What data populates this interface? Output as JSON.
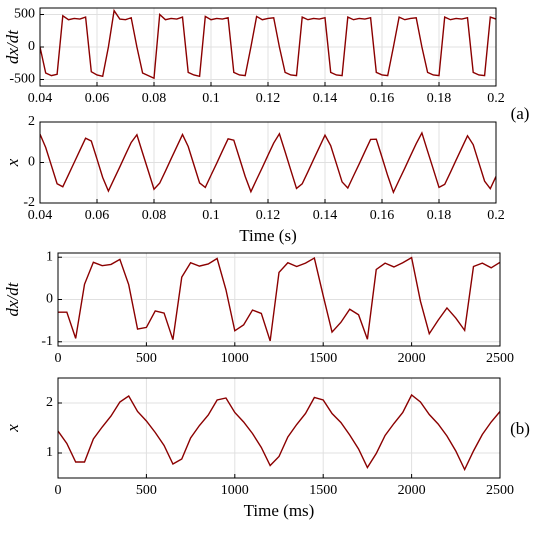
{
  "chart_data": [
    {
      "type": "line",
      "y_label": "dx/dt",
      "color": "#8b0000",
      "grid": true,
      "xlim": [
        0.04,
        0.2
      ],
      "xticks": [
        0.04,
        0.06,
        0.08,
        0.1,
        0.12,
        0.14,
        0.16,
        0.18,
        0.2
      ],
      "ylim": [
        -600,
        600
      ],
      "yticks": [
        -500,
        0,
        500
      ],
      "x": [
        0.04,
        0.042,
        0.044,
        0.046,
        0.048,
        0.05,
        0.052,
        0.054,
        0.056,
        0.058,
        0.06,
        0.062,
        0.064,
        0.066,
        0.068,
        0.07,
        0.072,
        0.074,
        0.076,
        0.078,
        0.08,
        0.082,
        0.084,
        0.086,
        0.088,
        0.09,
        0.092,
        0.094,
        0.096,
        0.098,
        0.1,
        0.102,
        0.104,
        0.106,
        0.108,
        0.11,
        0.112,
        0.114,
        0.116,
        0.118,
        0.12,
        0.122,
        0.124,
        0.126,
        0.128,
        0.13,
        0.132,
        0.134,
        0.136,
        0.138,
        0.14,
        0.142,
        0.144,
        0.146,
        0.148,
        0.15,
        0.152,
        0.154,
        0.156,
        0.158,
        0.16,
        0.162,
        0.164,
        0.166,
        0.168,
        0.17,
        0.172,
        0.174,
        0.176,
        0.178,
        0.18,
        0.182,
        0.184,
        0.186,
        0.188,
        0.19,
        0.192,
        0.194,
        0.196,
        0.198,
        0.2
      ],
      "values": [
        0,
        -400,
        -440,
        -420,
        480,
        420,
        440,
        430,
        460,
        -380,
        -430,
        -450,
        0,
        560,
        430,
        420,
        450,
        0,
        -400,
        -440,
        -480,
        500,
        420,
        440,
        430,
        460,
        -390,
        -430,
        -450,
        470,
        420,
        440,
        430,
        450,
        -390,
        -430,
        -440,
        0,
        470,
        420,
        440,
        450,
        0,
        -390,
        -430,
        -440,
        460,
        420,
        440,
        430,
        450,
        -390,
        -430,
        -440,
        460,
        420,
        440,
        430,
        450,
        -390,
        -430,
        -440,
        0,
        460,
        420,
        440,
        450,
        0,
        -390,
        -430,
        -440,
        460,
        420,
        440,
        430,
        450,
        -390,
        -430,
        -440,
        460,
        430
      ]
    },
    {
      "type": "line",
      "y_label": "x",
      "x_label": "Time (s)",
      "color": "#8b0000",
      "grid": true,
      "annotation": "(a)",
      "xlim": [
        0.04,
        0.2
      ],
      "xticks": [
        0.04,
        0.06,
        0.08,
        0.1,
        0.12,
        0.14,
        0.16,
        0.18,
        0.2
      ],
      "ylim": [
        -2,
        2
      ],
      "yticks": [
        -2,
        0,
        2
      ],
      "x": [
        0.04,
        0.042,
        0.044,
        0.046,
        0.048,
        0.05,
        0.052,
        0.054,
        0.056,
        0.058,
        0.06,
        0.062,
        0.064,
        0.066,
        0.068,
        0.07,
        0.072,
        0.074,
        0.076,
        0.078,
        0.08,
        0.082,
        0.084,
        0.086,
        0.088,
        0.09,
        0.092,
        0.094,
        0.096,
        0.098,
        0.1,
        0.102,
        0.104,
        0.106,
        0.108,
        0.11,
        0.112,
        0.114,
        0.116,
        0.118,
        0.12,
        0.122,
        0.124,
        0.126,
        0.128,
        0.13,
        0.132,
        0.134,
        0.136,
        0.138,
        0.14,
        0.142,
        0.144,
        0.146,
        0.148,
        0.15,
        0.152,
        0.154,
        0.156,
        0.158,
        0.16,
        0.162,
        0.164,
        0.166,
        0.168,
        0.17,
        0.172,
        0.174,
        0.176,
        0.178,
        0.18,
        0.182,
        0.184,
        0.186,
        0.188,
        0.19,
        0.192,
        0.194,
        0.196,
        0.198,
        0.2
      ],
      "values": [
        1.4,
        0.74,
        -0.15,
        -1.05,
        -1.2,
        -0.6,
        0.0,
        0.6,
        1.2,
        1.06,
        0.17,
        -0.74,
        -1.41,
        -0.81,
        -0.22,
        0.39,
        0.99,
        1.37,
        0.47,
        -0.42,
        -1.32,
        -1.02,
        -0.43,
        0.18,
        0.78,
        1.38,
        0.79,
        -0.11,
        -1.01,
        -1.23,
        -0.63,
        -0.04,
        0.57,
        1.17,
        1.1,
        0.21,
        -0.69,
        -1.44,
        -0.84,
        -0.25,
        0.36,
        0.96,
        1.42,
        0.53,
        -0.38,
        -1.28,
        -1.05,
        -0.46,
        0.15,
        0.75,
        1.35,
        0.83,
        -0.06,
        -0.96,
        -1.26,
        -0.66,
        -0.07,
        0.54,
        1.14,
        1.15,
        0.26,
        -0.65,
        -1.47,
        -0.87,
        -0.28,
        0.33,
        0.93,
        1.46,
        0.56,
        -0.33,
        -1.23,
        -1.08,
        -0.49,
        0.12,
        0.72,
        1.32,
        0.88,
        -0.02,
        -0.92,
        -1.29,
        -0.69
      ]
    },
    {
      "type": "line",
      "y_label": "dx/dt",
      "color": "#8b0000",
      "grid": true,
      "xlim": [
        0,
        2500
      ],
      "xticks": [
        0,
        500,
        1000,
        1500,
        2000,
        2500
      ],
      "ylim": [
        -1.1,
        1.1
      ],
      "yticks": [
        -1,
        0,
        1
      ],
      "x": [
        0,
        50,
        100,
        150,
        200,
        250,
        300,
        350,
        400,
        450,
        500,
        550,
        600,
        650,
        700,
        750,
        800,
        850,
        900,
        950,
        1000,
        1050,
        1100,
        1150,
        1200,
        1250,
        1300,
        1350,
        1400,
        1450,
        1500,
        1550,
        1600,
        1650,
        1700,
        1750,
        1800,
        1850,
        1900,
        1950,
        2000,
        2050,
        2100,
        2150,
        2200,
        2250,
        2300,
        2350,
        2400,
        2450,
        2500
      ],
      "values": [
        -0.3,
        -0.3,
        -0.92,
        0.36,
        0.88,
        0.8,
        0.83,
        0.95,
        0.35,
        -0.7,
        -0.66,
        -0.27,
        -0.32,
        -0.95,
        0.53,
        0.87,
        0.79,
        0.84,
        0.97,
        0.23,
        -0.74,
        -0.6,
        -0.25,
        -0.33,
        -0.98,
        0.64,
        0.87,
        0.78,
        0.86,
        0.98,
        0.09,
        -0.77,
        -0.54,
        -0.23,
        -0.36,
        -0.94,
        0.71,
        0.86,
        0.77,
        0.87,
        0.99,
        -0.04,
        -0.81,
        -0.49,
        -0.2,
        -0.44,
        -0.73,
        0.78,
        0.86,
        0.75,
        0.88
      ]
    },
    {
      "type": "line",
      "y_label": "x",
      "x_label": "Time (ms)",
      "color": "#8b0000",
      "grid": true,
      "annotation": "(b)",
      "xlim": [
        0,
        2500
      ],
      "xticks": [
        0,
        500,
        1000,
        1500,
        2000,
        2500
      ],
      "ylim": [
        0.5,
        2.5
      ],
      "yticks": [
        1,
        2
      ],
      "x": [
        0,
        50,
        100,
        150,
        200,
        250,
        300,
        350,
        400,
        450,
        500,
        550,
        600,
        650,
        700,
        750,
        800,
        850,
        900,
        950,
        1000,
        1050,
        1100,
        1150,
        1200,
        1250,
        1300,
        1350,
        1400,
        1450,
        1500,
        1550,
        1600,
        1650,
        1700,
        1750,
        1800,
        1850,
        1900,
        1950,
        2000,
        2050,
        2100,
        2150,
        2200,
        2250,
        2300,
        2350,
        2400,
        2450,
        2500
      ],
      "values": [
        1.44,
        1.19,
        0.82,
        0.82,
        1.28,
        1.52,
        1.74,
        2.02,
        2.14,
        1.83,
        1.64,
        1.41,
        1.15,
        0.78,
        0.88,
        1.3,
        1.55,
        1.76,
        2.06,
        2.1,
        1.81,
        1.62,
        1.39,
        1.11,
        0.75,
        0.93,
        1.32,
        1.57,
        1.79,
        2.11,
        2.06,
        1.79,
        1.61,
        1.36,
        1.08,
        0.71,
        0.99,
        1.35,
        1.59,
        1.81,
        2.16,
        2.02,
        1.77,
        1.58,
        1.34,
        1.04,
        0.67,
        1.04,
        1.37,
        1.62,
        1.83
      ]
    }
  ]
}
